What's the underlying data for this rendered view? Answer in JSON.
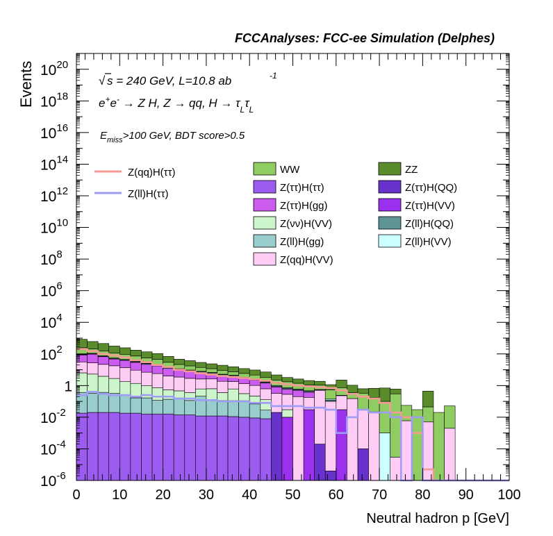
{
  "chart_data": {
    "type": "bar",
    "title": "FCCAnalyses: FCC-ee Simulation (Delphes)",
    "xlabel": "Neutral hadron p [GeV]",
    "ylabel": "Events",
    "xlim": [
      0,
      100
    ],
    "ylim": [
      1e-06,
      1e+21
    ],
    "yscale": "log",
    "x_ticks": [
      "0",
      "10",
      "20",
      "30",
      "40",
      "50",
      "60",
      "70",
      "80",
      "90",
      "100"
    ],
    "y_tick_mantissa": "10",
    "y_tick_exponents": [
      "-6",
      "-4",
      "-2",
      "",
      "2",
      "4",
      "6",
      "8",
      "10",
      "12",
      "14",
      "16",
      "18",
      "20"
    ],
    "y_tick_one": "1",
    "bin_width": 2.5,
    "annotations": {
      "sqrt": "√",
      "energy_lead": "s = 240 GeV, L=10.8 ab",
      "energy_sup": "-1",
      "process_main": "e",
      "process_sup1": "+",
      "process_e2": "e",
      "process_sup2": "-",
      "process_rest": " → Z H, Z  → qq, H  → τ",
      "process_sub1": "L",
      "process_tau2": "τ",
      "process_sub2": "L",
      "cut_e": "E",
      "cut_sub": "miss",
      "cut_rest": ">100 GeV, BDT score>0.5"
    },
    "signal_legend": [
      {
        "name": "Z(qq)H(ττ)",
        "color": "#f59a94"
      },
      {
        "name": "Z(ll)H(ττ)",
        "color": "#9f9cf5"
      }
    ],
    "background_legend": [
      {
        "name": "WW",
        "color": "#8fcc62"
      },
      {
        "name": "ZZ",
        "color": "#5b8c2b"
      },
      {
        "name": "Z(ττ)H(ττ)",
        "color": "#9d5cf0"
      },
      {
        "name": "Z(ττ)H(QQ)",
        "color": "#6833cc"
      },
      {
        "name": "Z(ττ)H(gg)",
        "color": "#cc5cf0"
      },
      {
        "name": "Z(ττ)H(VV)",
        "color": "#9b30ef"
      },
      {
        "name": "Z(νν)H(VV)",
        "color": "#ccf5cc"
      },
      {
        "name": "Z(ll)H(QQ)",
        "color": "#5e9494"
      },
      {
        "name": "Z(ll)H(gg)",
        "color": "#99cccc"
      },
      {
        "name": "Z(ll)H(VV)",
        "color": "#ccffff"
      },
      {
        "name": "Z(qq)H(VV)",
        "color": "#ffccf5"
      }
    ],
    "stack_series": [
      {
        "name": "Z(ττ)H(ττ)",
        "color": "#9d5cf0",
        "values": [
          0.018,
          0.02,
          0.02,
          0.02,
          0.018,
          0.018,
          0.016,
          0.016,
          0.016,
          0.014,
          0.014,
          0.012,
          0.012,
          0.012,
          0.011,
          0.01,
          0.009,
          0.008,
          0,
          0,
          0,
          0,
          0,
          0,
          0,
          0,
          0,
          0,
          0,
          0,
          0,
          0,
          0,
          0,
          0,
          0,
          0,
          0,
          0,
          0
        ]
      },
      {
        "name": "Z(ll)H(gg)",
        "color": "#99cccc",
        "values": [
          0.35,
          0.3,
          0.35,
          0.3,
          0.25,
          0.15,
          0.15,
          0.1,
          0.12,
          0.15,
          0.1,
          0.2,
          0.12,
          0.1,
          0.1,
          0.1,
          0.06,
          0.02,
          0,
          0,
          0,
          0,
          0,
          0,
          0,
          0,
          0,
          0,
          0,
          0,
          0,
          0,
          0,
          0,
          0,
          0,
          0,
          0,
          0,
          0
        ]
      },
      {
        "name": "Z(ττ)H(QQ)",
        "color": "#6833cc",
        "values": [
          0,
          0,
          0,
          0,
          0,
          0,
          0,
          0,
          0,
          0,
          0,
          0,
          0,
          0,
          0,
          0,
          0,
          0,
          0.02,
          0,
          0,
          0,
          0.0002,
          4e-06,
          0,
          0,
          0.0001,
          0,
          0,
          0,
          0,
          0,
          0,
          0,
          0,
          0,
          0,
          0,
          0,
          0
        ]
      },
      {
        "name": "Z(ττ)H(VV)",
        "color": "#9b30ef",
        "values": [
          0,
          0,
          0,
          0,
          0,
          0,
          0,
          0,
          0,
          0,
          0,
          0,
          0,
          0,
          0,
          0,
          0,
          0,
          0,
          0.01,
          0,
          0.03,
          0,
          0,
          0.03,
          0,
          0,
          0,
          0,
          0,
          0,
          0,
          0,
          0,
          0,
          0,
          0,
          0,
          0,
          0
        ]
      },
      {
        "name": "Z(νν)H(VV)",
        "color": "#ccf5cc",
        "values": [
          6,
          5,
          3.5,
          2.5,
          1.5,
          1.2,
          0.8,
          0.6,
          0.4,
          0.3,
          0.25,
          0.4,
          0.5,
          0.25,
          0.5,
          0.2,
          0.15,
          0.1,
          0,
          0.02,
          0,
          0,
          0,
          0,
          0,
          0,
          0,
          0,
          0,
          0,
          0,
          0,
          0,
          0,
          0,
          0,
          0,
          0,
          0,
          0
        ]
      },
      {
        "name": "Z(qq)H(VV)",
        "color": "#ffccf5",
        "values": [
          25,
          22,
          18,
          15,
          12,
          8,
          6,
          5,
          3.5,
          3,
          2.5,
          2,
          2,
          1.5,
          1.2,
          1,
          0.8,
          0.5,
          0.3,
          0.25,
          0.2,
          0.15,
          0.5,
          0.1,
          0.2,
          0.15,
          0.03,
          0.02,
          0,
          3e-05,
          0.006,
          0,
          0.005,
          0,
          0.002,
          0,
          0,
          0,
          0,
          0
        ]
      },
      {
        "name": "Z(ττ)H(gg)",
        "color": "#cc5cf0",
        "values": [
          55,
          70,
          45,
          30,
          25,
          20,
          15,
          12,
          8,
          6,
          5,
          4,
          3,
          2.5,
          2,
          1.5,
          1.2,
          0.8,
          0.5,
          0.3,
          0.3,
          0.2,
          0,
          0,
          0,
          0,
          0,
          0,
          0,
          0,
          0,
          0,
          0,
          0,
          0,
          0,
          0,
          0,
          0,
          0
        ]
      },
      {
        "name": "Z(ll)H(QQ)",
        "color": "#5e9494",
        "values": [
          5,
          8,
          6,
          5,
          4,
          3,
          2.5,
          2,
          1.8,
          1.5,
          1.2,
          1,
          0.8,
          0.6,
          0.5,
          0.4,
          0.3,
          0.2,
          0.1,
          0.1,
          0.05,
          0.05,
          0.03,
          0.02,
          0.01,
          0,
          0,
          0,
          0,
          0,
          0,
          0,
          0,
          0,
          0,
          0,
          0,
          0,
          0,
          0
        ]
      },
      {
        "name": "Z(ll)H(VV)",
        "color": "#ccffff",
        "values": [
          5,
          4,
          3,
          2.5,
          2,
          1.5,
          1.2,
          1,
          0.8,
          0.6,
          0.5,
          0.4,
          0.3,
          0.25,
          0.2,
          0.15,
          0.12,
          0.1,
          0.08,
          0.06,
          0.05,
          0.04,
          0.03,
          0.02,
          0.002,
          0.001,
          0.0003,
          0.002,
          0.001,
          0,
          0,
          0,
          0,
          0,
          0,
          0,
          0,
          0,
          0,
          0
        ]
      },
      {
        "name": "WW",
        "color": "#8fcc62",
        "values": [
          150,
          100,
          80,
          60,
          50,
          40,
          30,
          25,
          15,
          10,
          8,
          6,
          5,
          4,
          3,
          2.5,
          2,
          1.5,
          1.2,
          1,
          0.8,
          0.6,
          0.5,
          0.4,
          0.5,
          0.2,
          0.3,
          0.15,
          0.1,
          0.3,
          0.05,
          0.03,
          0.04,
          0.02,
          0.05,
          0,
          0,
          0,
          0,
          0
        ]
      },
      {
        "name": "ZZ",
        "color": "#5b8c2b",
        "values": [
          600,
          400,
          300,
          200,
          150,
          100,
          80,
          60,
          40,
          25,
          20,
          15,
          12,
          10,
          8,
          6,
          5,
          4,
          2.5,
          1.5,
          1.2,
          1,
          0.8,
          0.6,
          1.5,
          0.7,
          0.3,
          0.5,
          0.6,
          0.3,
          0,
          0,
          0.4,
          0,
          0,
          0,
          0,
          0,
          0,
          0
        ]
      }
    ],
    "signal_series": [
      {
        "name": "Z(qq)H(ττ)",
        "color": "#f59a94",
        "values": [
          200,
          150,
          100,
          80,
          60,
          40,
          30,
          20,
          15,
          10,
          8,
          6,
          5,
          4,
          3.5,
          3,
          2.5,
          2,
          1.5,
          1.2,
          1,
          0.9,
          0.8,
          0.7,
          0.5,
          0.3,
          0.2,
          0.15,
          0.08,
          0.02,
          0.01,
          0.001,
          5e-06,
          1e-06,
          1e-06,
          1e-06,
          1e-06,
          1e-06,
          1e-06,
          1e-06
        ]
      },
      {
        "name": "Z(ll)H(ττ)",
        "color": "#9f9cf5",
        "values": [
          0.25,
          0.4,
          0.3,
          0.25,
          0.25,
          0.2,
          0.25,
          0.2,
          0.2,
          0.15,
          0.15,
          0.12,
          0.12,
          0.1,
          0.1,
          0.1,
          0.08,
          0.08,
          0.05,
          0.05,
          0.05,
          0.04,
          0.04,
          0.03,
          0.001,
          0.01,
          0.03,
          0.02,
          0.02,
          0.01,
          1e-06,
          0.01,
          1e-06,
          1e-06,
          1e-06,
          1e-06,
          1e-06,
          1e-06,
          1e-06,
          1e-06
        ]
      }
    ]
  }
}
